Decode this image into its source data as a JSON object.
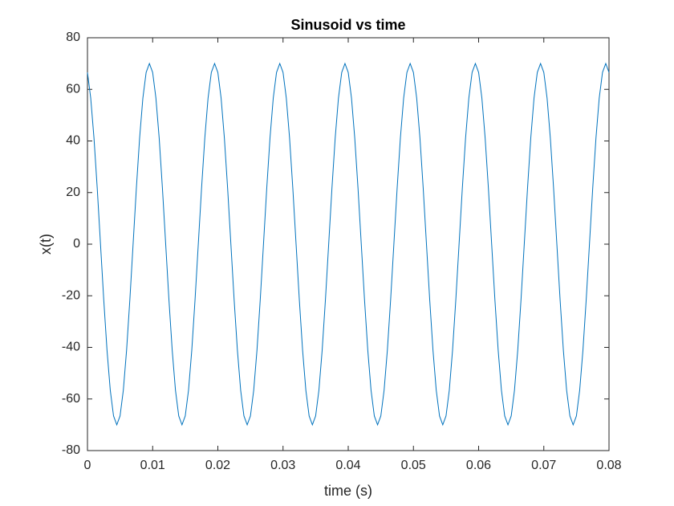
{
  "chart_data": {
    "type": "line",
    "title": "Sinusoid vs time",
    "x_label": "time (s)",
    "y_label": "x(t)",
    "color": "#0072bd",
    "x": [
      0,
      0.0005,
      0.001,
      0.0015,
      0.002,
      0.0025,
      0.003,
      0.0035,
      0.004,
      0.0045,
      0.005,
      0.0055,
      0.006,
      0.0065,
      0.007,
      0.0075,
      0.008,
      0.0085,
      0.009,
      0.0095,
      0.01,
      0.0105,
      0.011,
      0.0115,
      0.012,
      0.0125,
      0.013,
      0.0135,
      0.014,
      0.0145,
      0.015,
      0.0155,
      0.016,
      0.0165,
      0.017,
      0.0175,
      0.018,
      0.0185,
      0.019,
      0.0195,
      0.02,
      0.0205,
      0.021,
      0.0215,
      0.022,
      0.0225,
      0.023,
      0.0235,
      0.024,
      0.0245,
      0.025,
      0.0255,
      0.026,
      0.0265,
      0.027,
      0.0275,
      0.028,
      0.0285,
      0.029,
      0.0295,
      0.03,
      0.0305,
      0.031,
      0.0315,
      0.032,
      0.0325,
      0.033,
      0.0335,
      0.034,
      0.0345,
      0.035,
      0.0355,
      0.036,
      0.0365,
      0.037,
      0.0375,
      0.038,
      0.0385,
      0.039,
      0.0395,
      0.04,
      0.0405,
      0.041,
      0.0415,
      0.042,
      0.0425,
      0.043,
      0.0435,
      0.044,
      0.0445,
      0.045,
      0.0455,
      0.046,
      0.0465,
      0.047,
      0.0475,
      0.048,
      0.0485,
      0.049,
      0.0495,
      0.05,
      0.0505,
      0.051,
      0.0515,
      0.052,
      0.0525,
      0.053,
      0.0535,
      0.054,
      0.0545,
      0.055,
      0.0555,
      0.056,
      0.0565,
      0.057,
      0.0575,
      0.058,
      0.0585,
      0.059,
      0.0595,
      0.06,
      0.0605,
      0.061,
      0.0615,
      0.062,
      0.0625,
      0.063,
      0.0635,
      0.064,
      0.0645,
      0.065,
      0.0655,
      0.066,
      0.0665,
      0.067,
      0.0675,
      0.068,
      0.0685,
      0.069,
      0.0695,
      0.07,
      0.0705,
      0.071,
      0.0715,
      0.072,
      0.0725,
      0.073,
      0.0735,
      0.074,
      0.0745,
      0.075,
      0.0755,
      0.076,
      0.0765,
      0.077,
      0.0775,
      0.078,
      0.0785,
      0.079,
      0.0795,
      0.08
    ],
    "values": [
      66.57,
      56.63,
      41.15,
      21.63,
      0,
      -21.63,
      -41.15,
      -56.63,
      -66.57,
      -70,
      -66.57,
      -56.63,
      -41.15,
      -21.63,
      0,
      21.63,
      41.15,
      56.63,
      66.57,
      70,
      66.57,
      56.63,
      41.15,
      21.63,
      0,
      -21.63,
      -41.15,
      -56.63,
      -66.57,
      -70,
      -66.57,
      -56.63,
      -41.15,
      -21.63,
      0,
      21.63,
      41.15,
      56.63,
      66.57,
      70,
      66.57,
      56.63,
      41.15,
      21.63,
      0,
      -21.63,
      -41.15,
      -56.63,
      -66.57,
      -70,
      -66.57,
      -56.63,
      -41.15,
      -21.63,
      0,
      21.63,
      41.15,
      56.63,
      66.57,
      70,
      66.57,
      56.63,
      41.15,
      21.63,
      0,
      -21.63,
      -41.15,
      -56.63,
      -66.57,
      -70,
      -66.57,
      -56.63,
      -41.15,
      -21.63,
      0,
      21.63,
      41.15,
      56.63,
      66.57,
      70,
      66.57,
      56.63,
      41.15,
      21.63,
      0,
      -21.63,
      -41.15,
      -56.63,
      -66.57,
      -70,
      -66.57,
      -56.63,
      -41.15,
      -21.63,
      0,
      21.63,
      41.15,
      56.63,
      66.57,
      70,
      66.57,
      56.63,
      41.15,
      21.63,
      0,
      -21.63,
      -41.15,
      -56.63,
      -66.57,
      -70,
      -66.57,
      -56.63,
      -41.15,
      -21.63,
      0,
      21.63,
      41.15,
      56.63,
      66.57,
      70,
      66.57,
      56.63,
      41.15,
      21.63,
      0,
      -21.63,
      -41.15,
      -56.63,
      -66.57,
      -70,
      -66.57,
      -56.63,
      -41.15,
      -21.63,
      0,
      21.63,
      41.15,
      56.63,
      66.57,
      70,
      66.57,
      56.63,
      41.15,
      21.63,
      0,
      -21.63,
      -41.15,
      -56.63,
      -66.57,
      -70,
      -66.57,
      -56.63,
      -41.15,
      -21.63,
      0,
      21.63,
      41.15,
      56.63,
      66.57,
      70,
      66.57
    ],
    "xlim": [
      0,
      0.08
    ],
    "xticks": [
      0,
      0.01,
      0.02,
      0.03,
      0.04,
      0.05,
      0.06,
      0.07,
      0.08
    ],
    "ylim": [
      -80,
      80
    ],
    "yticks": [
      -80,
      -60,
      -40,
      -20,
      0,
      20,
      40,
      60,
      80
    ],
    "grid": false
  }
}
